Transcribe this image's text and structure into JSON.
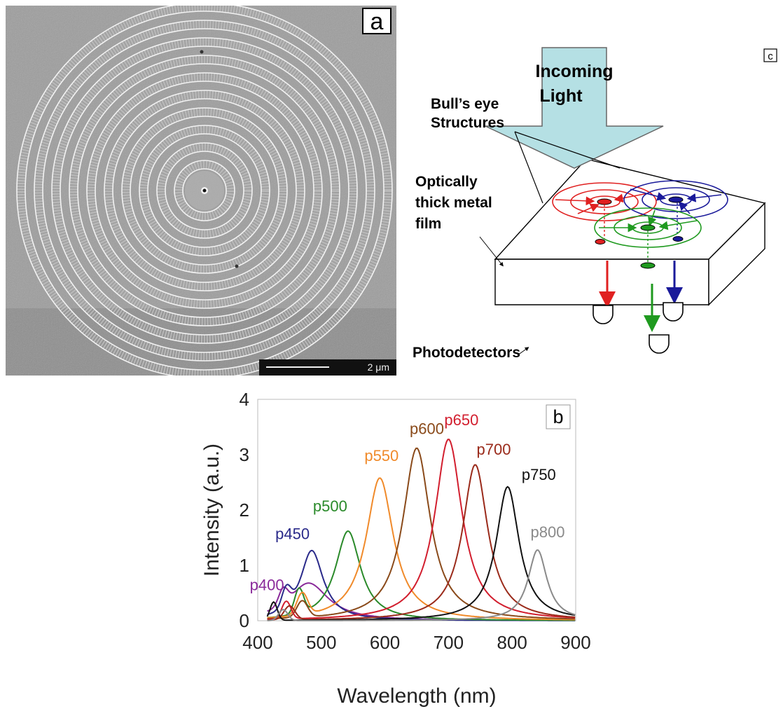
{
  "panel_a": {
    "label": "a",
    "scale_bar_label": "2 μm"
  },
  "panel_c": {
    "label": "c",
    "incoming_light_line1": "Incoming",
    "incoming_light_line2": "Light",
    "bulls_eye_line1": "Bull’s eye",
    "bulls_eye_line2": "Structures",
    "metal_film_line1": "Optically",
    "metal_film_line2": "thick metal",
    "metal_film_line3": "film",
    "photodetectors_label": "Photodetectors",
    "colors": {
      "red": "#e02020",
      "blue": "#1a1a9a",
      "green": "#1f9a1f",
      "light": "#b5e0e4"
    }
  },
  "chart_data": {
    "type": "line",
    "panel_label": "b",
    "xlabel": "Wavelength (nm)",
    "ylabel": "Intensity (a.u.)",
    "xlim": [
      400,
      900
    ],
    "ylim": [
      0,
      4
    ],
    "x_ticks": [
      400,
      500,
      600,
      700,
      800,
      900
    ],
    "y_ticks": [
      0,
      1,
      2,
      3,
      4
    ],
    "grid": false,
    "series": [
      {
        "name": "p400",
        "color": "#8a2a9a",
        "peak_x": 480,
        "peak_y": 0.68,
        "width": 38,
        "bumps": [
          [
            440,
            0.28,
            10
          ]
        ]
      },
      {
        "name": "p450",
        "color": "#2a2a8a",
        "peak_x": 485,
        "peak_y": 1.27,
        "width": 22,
        "bumps": [
          [
            445,
            0.35,
            10
          ]
        ]
      },
      {
        "name": "p500",
        "color": "#2a8a2a",
        "peak_x": 542,
        "peak_y": 1.62,
        "width": 24,
        "bumps": [
          [
            465,
            0.45,
            10
          ]
        ]
      },
      {
        "name": "p550",
        "color": "#f08a2a",
        "peak_x": 592,
        "peak_y": 2.58,
        "width": 26,
        "bumps": [
          [
            470,
            0.4,
            12
          ]
        ]
      },
      {
        "name": "p600",
        "color": "#8a4a1a",
        "peak_x": 650,
        "peak_y": 3.12,
        "width": 26,
        "bumps": [
          [
            470,
            0.3,
            12
          ]
        ]
      },
      {
        "name": "p650",
        "color": "#d21e2e",
        "peak_x": 700,
        "peak_y": 3.28,
        "width": 26,
        "bumps": [
          [
            445,
            0.32,
            10
          ]
        ]
      },
      {
        "name": "p700",
        "color": "#9a2a1a",
        "peak_x": 742,
        "peak_y": 2.82,
        "width": 24,
        "bumps": [
          [
            450,
            0.25,
            12
          ]
        ]
      },
      {
        "name": "p750",
        "color": "#111111",
        "peak_x": 793,
        "peak_y": 2.42,
        "width": 22,
        "bumps": [
          [
            425,
            0.33,
            8
          ]
        ]
      },
      {
        "name": "p800",
        "color": "#8a8a8a",
        "peak_x": 840,
        "peak_y": 1.28,
        "width": 18,
        "bumps": [
          [
            440,
            0.2,
            10
          ]
        ]
      }
    ]
  }
}
